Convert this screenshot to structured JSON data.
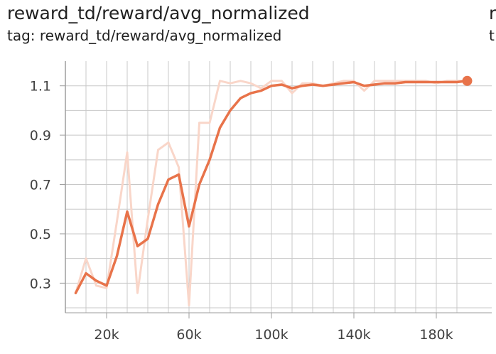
{
  "panel": {
    "title": "reward_td/reward/avg_normalized",
    "tag": "tag: reward_td/reward/avg_normalized",
    "next_title": "r",
    "next_tag": "t"
  },
  "chart_data": {
    "type": "line",
    "title": "reward_td/reward/avg_normalized",
    "xlabel": "",
    "ylabel": "",
    "xlim": [
      0,
      200000
    ],
    "ylim": [
      0.18,
      1.2
    ],
    "x_ticks": [
      20000,
      60000,
      100000,
      140000,
      180000
    ],
    "x_tick_labels": [
      "20k",
      "60k",
      "100k",
      "140k",
      "180k"
    ],
    "y_ticks": [
      0.3,
      0.5,
      0.7,
      0.9,
      1.1
    ],
    "y_tick_labels": [
      "0.3",
      "0.5",
      "0.7",
      "0.9",
      "1.1"
    ],
    "grid": true,
    "colors": {
      "smoothed": "#e8734a",
      "raw": "#f9d6c9",
      "grid": "#c8c8c8",
      "axis": "#9e9e9e"
    },
    "series": [
      {
        "kind": "raw",
        "x": [
          5000,
          10000,
          15000,
          20000,
          25000,
          30000,
          35000,
          40000,
          45000,
          50000,
          55000,
          60000,
          65000,
          70000,
          75000,
          80000,
          85000,
          90000,
          95000,
          100000,
          105000,
          110000,
          115000,
          120000,
          125000,
          130000,
          135000,
          140000,
          145000,
          150000,
          155000,
          160000,
          165000,
          170000,
          175000,
          180000,
          185000,
          190000,
          195000
        ],
        "y": [
          0.26,
          0.4,
          0.29,
          0.28,
          0.55,
          0.83,
          0.26,
          0.56,
          0.84,
          0.87,
          0.77,
          0.21,
          0.95,
          0.95,
          1.12,
          1.11,
          1.12,
          1.11,
          1.09,
          1.12,
          1.12,
          1.07,
          1.11,
          1.11,
          1.1,
          1.11,
          1.12,
          1.12,
          1.08,
          1.12,
          1.12,
          1.12,
          1.12,
          1.12,
          1.12,
          1.11,
          1.12,
          1.12,
          1.12
        ]
      },
      {
        "kind": "smoothed",
        "x": [
          5000,
          10000,
          15000,
          20000,
          25000,
          30000,
          35000,
          40000,
          45000,
          50000,
          55000,
          60000,
          65000,
          70000,
          75000,
          80000,
          85000,
          90000,
          95000,
          100000,
          105000,
          110000,
          115000,
          120000,
          125000,
          130000,
          135000,
          140000,
          145000,
          150000,
          155000,
          160000,
          165000,
          170000,
          175000,
          180000,
          185000,
          190000,
          195000
        ],
        "y": [
          0.26,
          0.34,
          0.31,
          0.29,
          0.41,
          0.59,
          0.45,
          0.48,
          0.62,
          0.72,
          0.74,
          0.53,
          0.7,
          0.8,
          0.93,
          1.0,
          1.05,
          1.07,
          1.08,
          1.1,
          1.105,
          1.09,
          1.1,
          1.105,
          1.1,
          1.105,
          1.11,
          1.115,
          1.1,
          1.105,
          1.11,
          1.11,
          1.115,
          1.115,
          1.115,
          1.115,
          1.115,
          1.115,
          1.12
        ]
      }
    ]
  }
}
